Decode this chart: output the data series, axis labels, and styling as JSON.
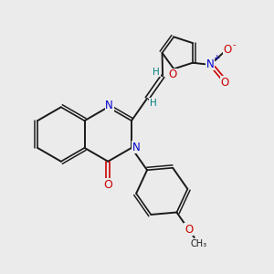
{
  "bg_color": "#ebebeb",
  "bond_color": "#1a1a1a",
  "N_color": "#0000cc",
  "O_color": "#cc0000",
  "H_color": "#008080",
  "figsize": [
    3.0,
    3.0
  ],
  "dpi": 100,
  "xlim": [
    0,
    10
  ],
  "ylim": [
    0,
    10
  ]
}
